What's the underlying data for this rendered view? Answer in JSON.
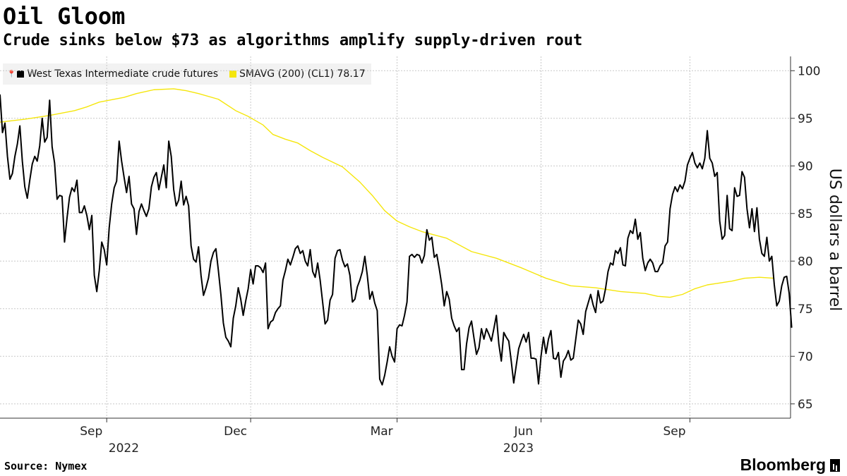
{
  "header": {
    "title": "Oil Gloom",
    "subtitle": "Crude sinks below $73 as algorithms amplify supply-driven rout"
  },
  "legend": {
    "series_1_label": "West Texas Intermediate crude futures",
    "series_2_label": "SMAVG (200) (CL1) 78.17",
    "series_1_color": "#000000",
    "series_2_color": "#f5e60c"
  },
  "footer": {
    "source": "Source: Nymex",
    "brand": "Bloomberg"
  },
  "chart_data": {
    "type": "line",
    "title": "Oil Gloom",
    "subtitle": "Crude sinks below $73 as algorithms amplify supply-driven rout",
    "xlabel": "",
    "ylabel": "US dollars a barrel",
    "ylim": [
      63.5,
      101.5
    ],
    "yticks": [
      65,
      70,
      75,
      80,
      85,
      90,
      95,
      100
    ],
    "grid": true,
    "legend_position": "top-left",
    "x_index_range": [
      0,
      312
    ],
    "x_ticks": [
      {
        "label": "Sep",
        "index": 43
      },
      {
        "label": "Dec",
        "index": 101
      },
      {
        "label": "Mar",
        "index": 160
      },
      {
        "label": "Jun",
        "index": 218
      },
      {
        "label": "Sep",
        "index": 278
      }
    ],
    "year_labels": [
      {
        "label": "2022",
        "index": 50
      },
      {
        "label": "2023",
        "index": 209
      }
    ],
    "series": [
      {
        "name": "West Texas Intermediate crude futures",
        "color": "#000000",
        "values": [
          97.5,
          93.5,
          94.5,
          91.0,
          88.6,
          89.2,
          91.0,
          92.3,
          94.2,
          90.5,
          87.8,
          86.6,
          88.5,
          90.2,
          91.0,
          90.5,
          92.1,
          95.0,
          92.5,
          93.0,
          96.9,
          92.0,
          90.3,
          86.5,
          86.9,
          86.8,
          82.0,
          84.5,
          86.7,
          87.7,
          87.3,
          88.5,
          85.1,
          85.1,
          85.8,
          84.8,
          83.3,
          84.8,
          78.5,
          76.8,
          79.0,
          82.0,
          81.2,
          79.6,
          83.5,
          86.0,
          87.7,
          88.4,
          92.6,
          90.5,
          88.8,
          87.2,
          88.9,
          86.0,
          85.5,
          82.8,
          85.2,
          86.0,
          85.3,
          84.7,
          85.5,
          87.8,
          88.8,
          89.3,
          87.5,
          88.8,
          90.1,
          87.7,
          92.6,
          91.0,
          87.5,
          85.8,
          86.4,
          88.4,
          85.9,
          86.8,
          85.8,
          81.6,
          80.2,
          79.9,
          81.5,
          78.5,
          76.4,
          77.2,
          78.2,
          80.0,
          80.9,
          81.3,
          79.0,
          76.5,
          73.5,
          72.0,
          71.6,
          71.0,
          74.0,
          75.3,
          77.2,
          76.0,
          74.3,
          75.8,
          77.1,
          79.1,
          77.6,
          79.5,
          79.5,
          79.3,
          78.8,
          79.8,
          72.9,
          73.6,
          73.8,
          74.6,
          75.0,
          75.3,
          78.0,
          79.0,
          80.2,
          79.6,
          80.4,
          81.3,
          81.6,
          80.8,
          81.1,
          80.0,
          79.5,
          81.2,
          78.9,
          78.3,
          79.8,
          78.0,
          75.7,
          73.4,
          73.8,
          75.9,
          76.5,
          80.3,
          81.1,
          81.2,
          80.1,
          79.4,
          79.7,
          78.5,
          75.7,
          76.0,
          77.3,
          78.0,
          78.9,
          80.5,
          78.5,
          76.0,
          76.8,
          75.6,
          74.8,
          67.6,
          67.0,
          68.0,
          69.4,
          71.0,
          70.0,
          69.4,
          72.9,
          73.3,
          73.2,
          74.3,
          75.7,
          80.5,
          80.7,
          80.4,
          80.7,
          80.6,
          79.8,
          80.6,
          83.3,
          82.2,
          82.5,
          80.4,
          80.7,
          79.2,
          77.5,
          75.3,
          76.8,
          76.0,
          74.0,
          73.2,
          72.6,
          73.0,
          68.6,
          68.6,
          71.3,
          73.0,
          73.7,
          71.9,
          70.2,
          70.9,
          72.9,
          71.8,
          72.9,
          72.3,
          71.6,
          72.9,
          74.3,
          71.3,
          69.5,
          72.5,
          72.0,
          71.6,
          69.5,
          67.2,
          69.0,
          70.8,
          71.6,
          72.3,
          71.5,
          72.5,
          69.8,
          69.8,
          69.7,
          67.1,
          70.0,
          72.0,
          70.3,
          71.8,
          72.7,
          69.8,
          69.7,
          70.4,
          67.8,
          69.5,
          69.9,
          70.6,
          69.6,
          69.8,
          71.8,
          73.8,
          73.4,
          72.3,
          74.7,
          75.6,
          76.5,
          75.4,
          74.6,
          76.9,
          75.6,
          75.8,
          77.1,
          78.9,
          79.8,
          79.6,
          81.1,
          80.8,
          81.4,
          79.6,
          79.5,
          82.4,
          83.2,
          82.9,
          84.4,
          82.3,
          83.0,
          80.3,
          79.0,
          79.8,
          80.2,
          79.8,
          78.9,
          78.9,
          79.5,
          79.8,
          81.6,
          82.0,
          85.5,
          87.0,
          87.8,
          87.3,
          88.0,
          87.6,
          88.4,
          90.1,
          90.8,
          91.4,
          90.3,
          89.8,
          90.3,
          89.7,
          90.8,
          93.7,
          90.8,
          90.3,
          88.9,
          89.3,
          84.2,
          82.3,
          82.7,
          86.9,
          83.4,
          83.2,
          87.7,
          86.8,
          86.9,
          89.4,
          88.8,
          85.5,
          83.5,
          85.5,
          83.1,
          85.6,
          82.3,
          80.8,
          80.5,
          82.5,
          80.0,
          80.5,
          77.5,
          75.3,
          75.8,
          77.4,
          78.3,
          78.4,
          76.6,
          73.0
        ]
      },
      {
        "name": "SMAVG (200) (CL1)",
        "color": "#f5e60c",
        "last_value": 78.17,
        "points": [
          [
            0,
            94.6
          ],
          [
            10,
            94.9
          ],
          [
            20,
            95.3
          ],
          [
            30,
            95.8
          ],
          [
            35,
            96.2
          ],
          [
            40,
            96.7
          ],
          [
            50,
            97.2
          ],
          [
            55,
            97.6
          ],
          [
            62,
            98.0
          ],
          [
            70,
            98.1
          ],
          [
            75,
            97.9
          ],
          [
            80,
            97.6
          ],
          [
            88,
            97.0
          ],
          [
            95,
            95.8
          ],
          [
            100,
            95.2
          ],
          [
            106,
            94.3
          ],
          [
            110,
            93.3
          ],
          [
            115,
            92.8
          ],
          [
            120,
            92.4
          ],
          [
            125,
            91.6
          ],
          [
            130,
            90.9
          ],
          [
            138,
            89.9
          ],
          [
            145,
            88.3
          ],
          [
            150,
            86.9
          ],
          [
            155,
            85.3
          ],
          [
            160,
            84.2
          ],
          [
            165,
            83.6
          ],
          [
            170,
            83.1
          ],
          [
            180,
            82.4
          ],
          [
            190,
            81.0
          ],
          [
            200,
            80.3
          ],
          [
            210,
            79.3
          ],
          [
            220,
            78.2
          ],
          [
            230,
            77.4
          ],
          [
            240,
            77.2
          ],
          [
            250,
            76.8
          ],
          [
            260,
            76.6
          ],
          [
            265,
            76.3
          ],
          [
            270,
            76.2
          ],
          [
            275,
            76.5
          ],
          [
            280,
            77.1
          ],
          [
            285,
            77.5
          ],
          [
            290,
            77.7
          ],
          [
            295,
            77.9
          ],
          [
            300,
            78.2
          ],
          [
            306,
            78.3
          ],
          [
            312,
            78.2
          ]
        ]
      }
    ]
  }
}
